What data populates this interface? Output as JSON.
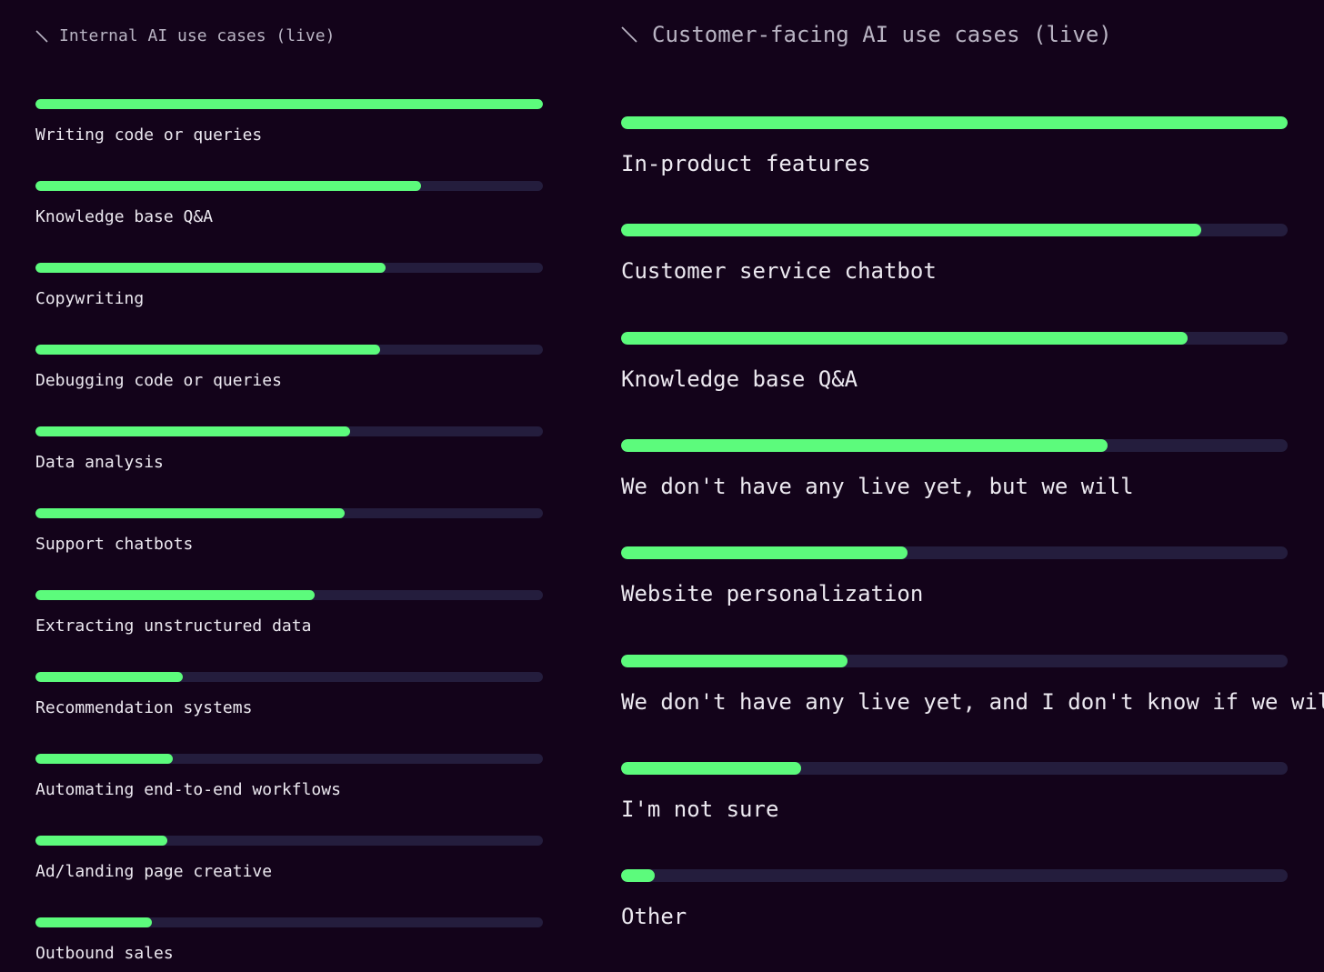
{
  "chart_data": [
    {
      "type": "bar",
      "orientation": "horizontal",
      "title": "Internal AI use cases (live)",
      "categories": [
        "Writing code or queries",
        "Knowledge base Q&A",
        "Copywriting",
        "Debugging code or queries",
        "Data analysis",
        "Support chatbots",
        "Extracting unstructured data",
        "Recommendation systems",
        "Automating end-to-end workflows",
        "Ad/landing page creative",
        "Outbound sales"
      ],
      "values": [
        100,
        76,
        69,
        68,
        62,
        61,
        55,
        29,
        27,
        26,
        23
      ],
      "xlim": [
        0,
        100
      ],
      "grid": false,
      "legend": "none",
      "colors": {
        "fill": "#5cfb7c",
        "track": "#241d3d",
        "background": "#13031a"
      }
    },
    {
      "type": "bar",
      "orientation": "horizontal",
      "title": "Customer-facing AI use cases (live)",
      "categories": [
        "In-product features",
        "Customer service chatbot",
        "Knowledge base Q&A",
        "We don't have any live yet, but we will",
        "Website personalization",
        "We don't have any live yet, and I don't know if we will",
        "I'm not sure",
        "Other"
      ],
      "values": [
        100,
        87,
        85,
        73,
        43,
        34,
        27,
        5
      ],
      "xlim": [
        0,
        100
      ],
      "grid": false,
      "legend": "none",
      "colors": {
        "fill": "#5cfb7c",
        "track": "#241d3d",
        "background": "#13031a"
      }
    }
  ]
}
